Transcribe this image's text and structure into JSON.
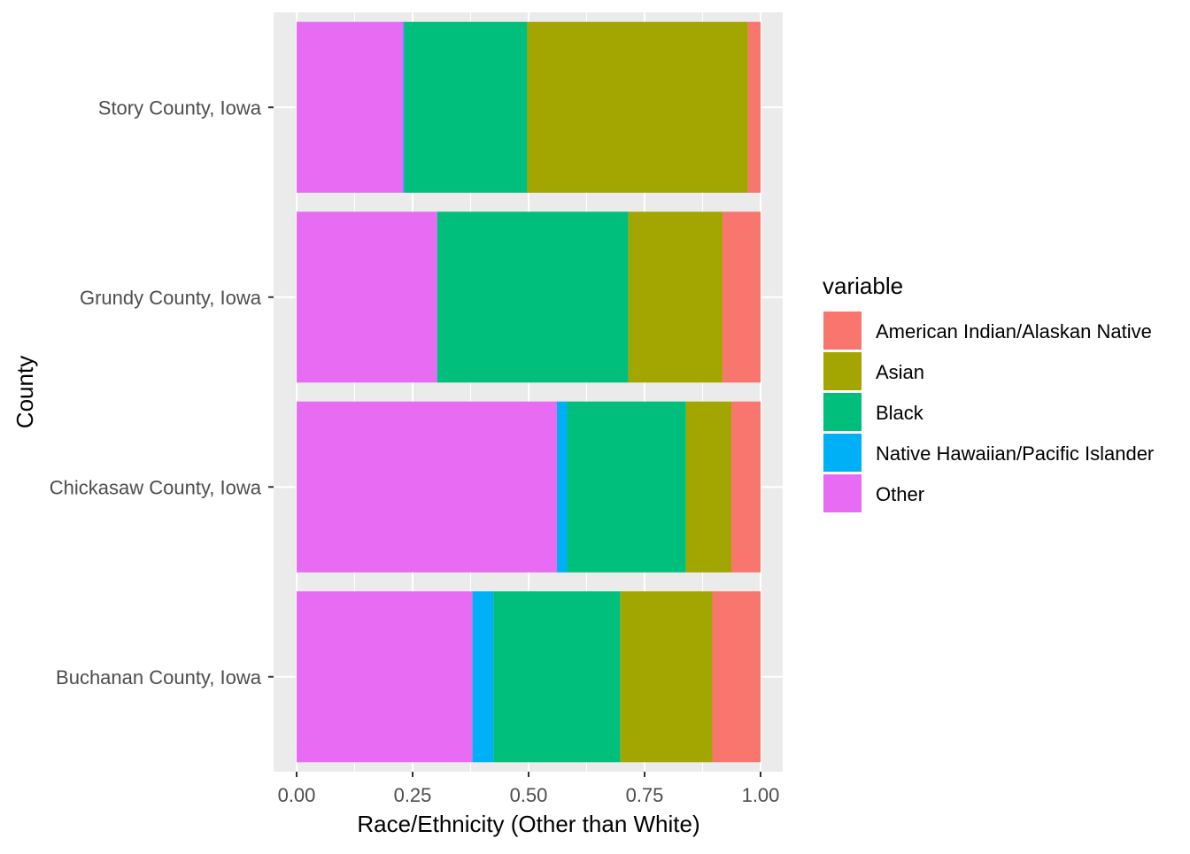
{
  "chart_data": {
    "type": "bar",
    "orientation": "horizontal",
    "stacked": true,
    "normalized": true,
    "xlabel": "Race/Ethnicity (Other than White)",
    "ylabel": "County",
    "xlim": [
      0,
      1
    ],
    "x_ticks": [
      "0.00",
      "0.25",
      "0.50",
      "0.75",
      "1.00"
    ],
    "grid": true,
    "legend": {
      "title": "variable",
      "position": "right"
    },
    "categories": [
      "Story County, Iowa",
      "Grundy County, Iowa",
      "Chickasaw County, Iowa",
      "Buchanan County, Iowa"
    ],
    "series": [
      {
        "name": "Other",
        "color": "#E76BF3",
        "values": [
          0.23,
          0.303,
          0.561,
          0.379
        ]
      },
      {
        "name": "Native Hawaiian/Pacific Islander",
        "color": "#00B0F6",
        "values": [
          0.002,
          0.0,
          0.022,
          0.045
        ]
      },
      {
        "name": "Black",
        "color": "#00BF7D",
        "values": [
          0.265,
          0.412,
          0.256,
          0.274
        ]
      },
      {
        "name": "Asian",
        "color": "#A3A500",
        "values": [
          0.476,
          0.203,
          0.098,
          0.198
        ]
      },
      {
        "name": "American Indian/Alaskan Native",
        "color": "#F8766D",
        "values": [
          0.027,
          0.082,
          0.063,
          0.104
        ]
      }
    ],
    "legend_order": [
      "American Indian/Alaskan Native",
      "Asian",
      "Black",
      "Native Hawaiian/Pacific Islander",
      "Other"
    ]
  }
}
